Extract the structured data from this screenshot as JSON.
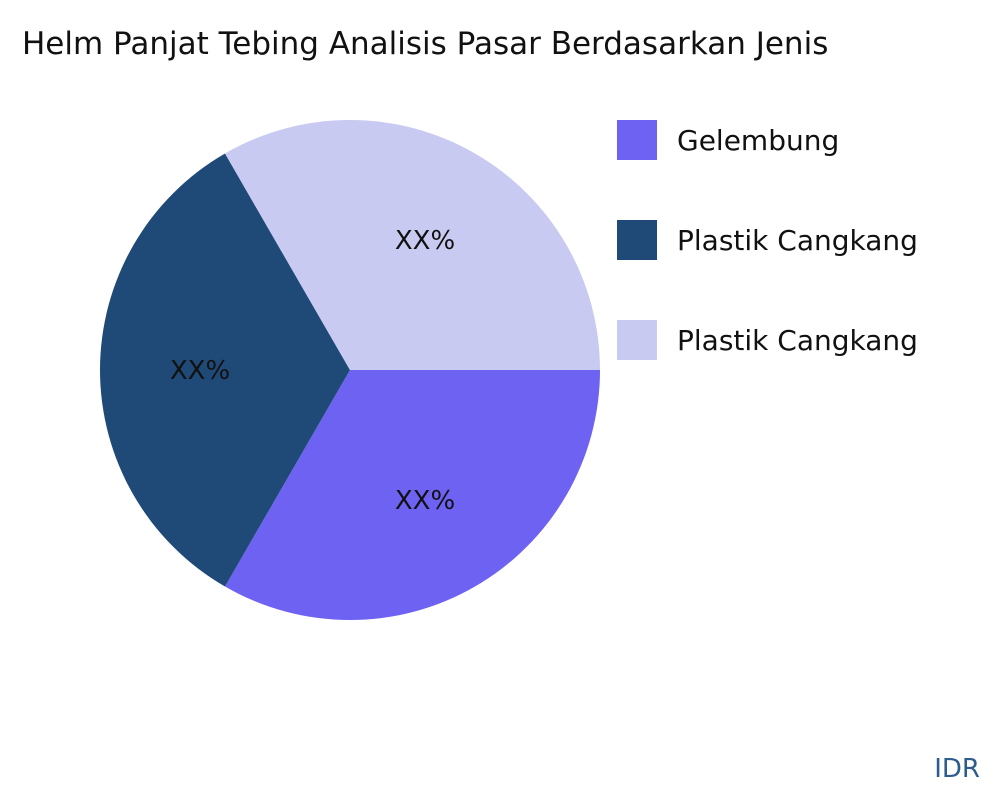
{
  "chart_data": {
    "type": "pie",
    "title": "Helm Panjat Tebing Analisis Pasar Berdasarkan Jenis",
    "slices": [
      {
        "name": "Gelembung",
        "value": 33.33,
        "label": "XX%",
        "color": "#6e62f2"
      },
      {
        "name": "Plastik Cangkang",
        "value": 33.33,
        "label": "XX%",
        "color": "#1f4a78"
      },
      {
        "name": "Plastik Cangkang",
        "value": 33.33,
        "label": "XX%",
        "color": "#c9caf1"
      }
    ],
    "legend_placement": "right"
  },
  "watermark": "IDR"
}
